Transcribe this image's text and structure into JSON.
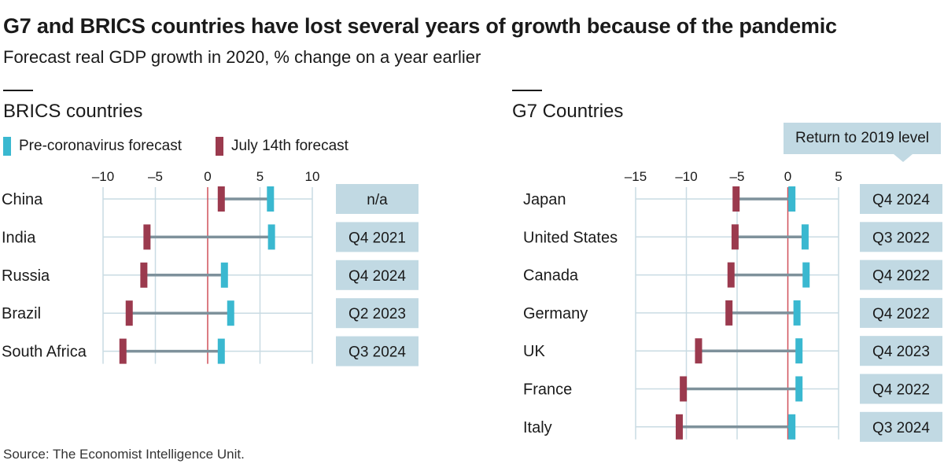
{
  "title": "G7 and BRICS countries have lost several years of growth because of the pandemic",
  "subtitle": "Forecast real GDP growth in 2020, % change on a year earlier",
  "source": "Source: The Economist Intelligence Unit.",
  "legend": {
    "pre": {
      "label": "Pre-coronavirus forecast",
      "color": "#3ab8d0"
    },
    "july": {
      "label": "July 14th forecast",
      "color": "#9b3a4e"
    }
  },
  "return_header": "Return to 2019 level",
  "colors": {
    "connector": "#7e919b",
    "grid": "#c9dbe3",
    "zero_line": "#d0505a",
    "box": "#c1d9e3"
  },
  "chart_data": [
    {
      "type": "dumbbell",
      "title": "BRICS countries",
      "xlim": [
        -10,
        10
      ],
      "xticks": [
        -10,
        -5,
        0,
        5,
        10
      ],
      "categories": [
        "China",
        "India",
        "Russia",
        "Brazil",
        "South Africa"
      ],
      "series": [
        {
          "name": "Pre-coronavirus forecast",
          "values": [
            6.0,
            6.1,
            1.6,
            2.2,
            1.3
          ]
        },
        {
          "name": "July 14th forecast",
          "values": [
            1.3,
            -5.8,
            -6.1,
            -7.5,
            -8.1
          ]
        }
      ],
      "return_to_2019": [
        "n/a",
        "Q4 2021",
        "Q4 2024",
        "Q2 2023",
        "Q3 2024"
      ]
    },
    {
      "type": "dumbbell",
      "title": "G7 Countries",
      "xlim": [
        -15,
        5
      ],
      "xticks": [
        -15,
        -10,
        -5,
        0,
        5
      ],
      "categories": [
        "Japan",
        "United States",
        "Canada",
        "Germany",
        "UK",
        "France",
        "Italy"
      ],
      "series": [
        {
          "name": "Pre-coronavirus forecast",
          "values": [
            0.4,
            1.7,
            1.8,
            0.9,
            1.1,
            1.1,
            0.4
          ]
        },
        {
          "name": "July 14th forecast",
          "values": [
            -5.1,
            -5.2,
            -5.6,
            -5.8,
            -8.8,
            -10.3,
            -10.7
          ]
        }
      ],
      "return_to_2019": [
        "Q4 2024",
        "Q3 2022",
        "Q4 2022",
        "Q4 2022",
        "Q4 2023",
        "Q4 2022",
        "Q3 2024"
      ]
    }
  ]
}
